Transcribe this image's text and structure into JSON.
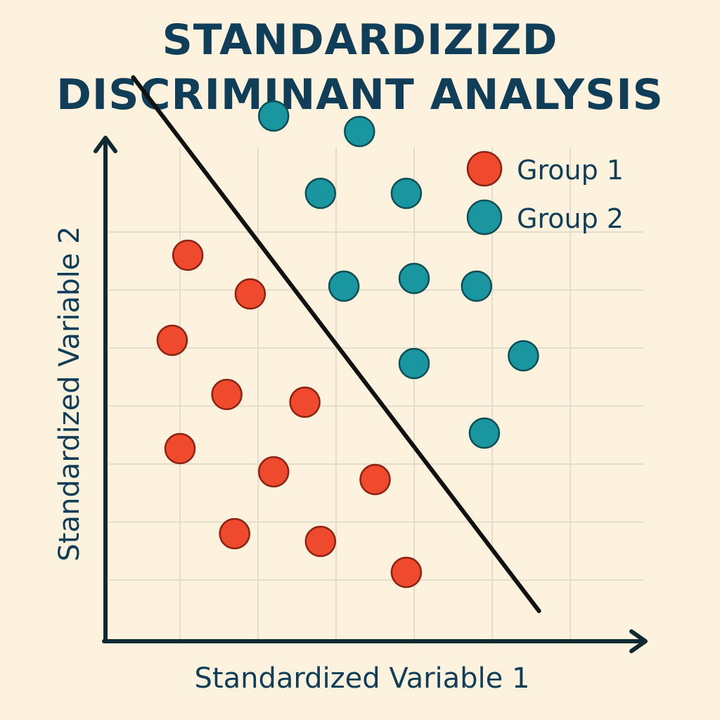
{
  "title_lines": [
    "STANDARDIZIZD",
    "DISCRIMINANT ANALYSIS"
  ],
  "colors": {
    "background": "#fcf2dd",
    "grid": "#e5ddcc",
    "axis": "#0f2a30",
    "text": "#103e58",
    "group1": "#ef4a2d",
    "group2": "#1a96a0",
    "discriminant_line": "#111111"
  },
  "chart_data": {
    "type": "scatter",
    "title": "STANDARDIZIZD DISCRIMINANT ANALYSIS",
    "xlabel": "Standardized Variable 1",
    "ylabel": "Standardized Variable 2",
    "xlim": [
      0,
      7
    ],
    "ylim": [
      0,
      7.6
    ],
    "grid": true,
    "legend_position": "top-right",
    "series": [
      {
        "name": "Group 1",
        "color": "#ef4a2d",
        "points": [
          {
            "x": 1.1,
            "y": 5.2
          },
          {
            "x": 1.9,
            "y": 4.7
          },
          {
            "x": 0.9,
            "y": 4.1
          },
          {
            "x": 1.6,
            "y": 3.4
          },
          {
            "x": 2.6,
            "y": 3.3
          },
          {
            "x": 1.0,
            "y": 2.7
          },
          {
            "x": 2.2,
            "y": 2.4
          },
          {
            "x": 3.5,
            "y": 2.3
          },
          {
            "x": 1.7,
            "y": 1.6
          },
          {
            "x": 2.8,
            "y": 1.5
          },
          {
            "x": 3.9,
            "y": 1.1
          }
        ]
      },
      {
        "name": "Group 2",
        "color": "#1a96a0",
        "points": [
          {
            "x": 2.2,
            "y": 7.0
          },
          {
            "x": 3.3,
            "y": 6.8
          },
          {
            "x": 2.8,
            "y": 6.0
          },
          {
            "x": 3.9,
            "y": 6.0
          },
          {
            "x": 3.1,
            "y": 4.8
          },
          {
            "x": 4.0,
            "y": 4.9
          },
          {
            "x": 4.8,
            "y": 4.8
          },
          {
            "x": 4.0,
            "y": 3.8
          },
          {
            "x": 5.4,
            "y": 3.9
          },
          {
            "x": 4.9,
            "y": 2.9
          }
        ]
      }
    ],
    "discriminant_line": {
      "x": [
        0.4,
        5.6
      ],
      "y": [
        7.5,
        0.6
      ]
    }
  }
}
